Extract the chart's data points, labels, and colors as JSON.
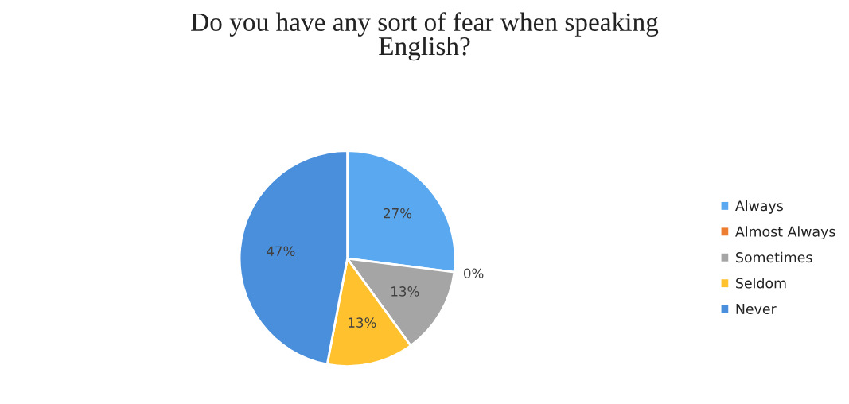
{
  "chart_data": {
    "type": "pie",
    "title": "Do you have any sort of fear when speaking\nEnglish?",
    "categories": [
      "Always",
      "Almost Always",
      "Sometimes",
      "Seldom",
      "Never"
    ],
    "values": [
      27,
      0,
      13,
      13,
      47
    ],
    "colors": [
      "#5aa9f0",
      "#ed7d31",
      "#a5a5a5",
      "#ffc22e",
      "#4a8fdc"
    ],
    "value_labels": [
      "27%",
      "0%",
      "13%",
      "13%",
      "47%"
    ],
    "legend": "right"
  }
}
